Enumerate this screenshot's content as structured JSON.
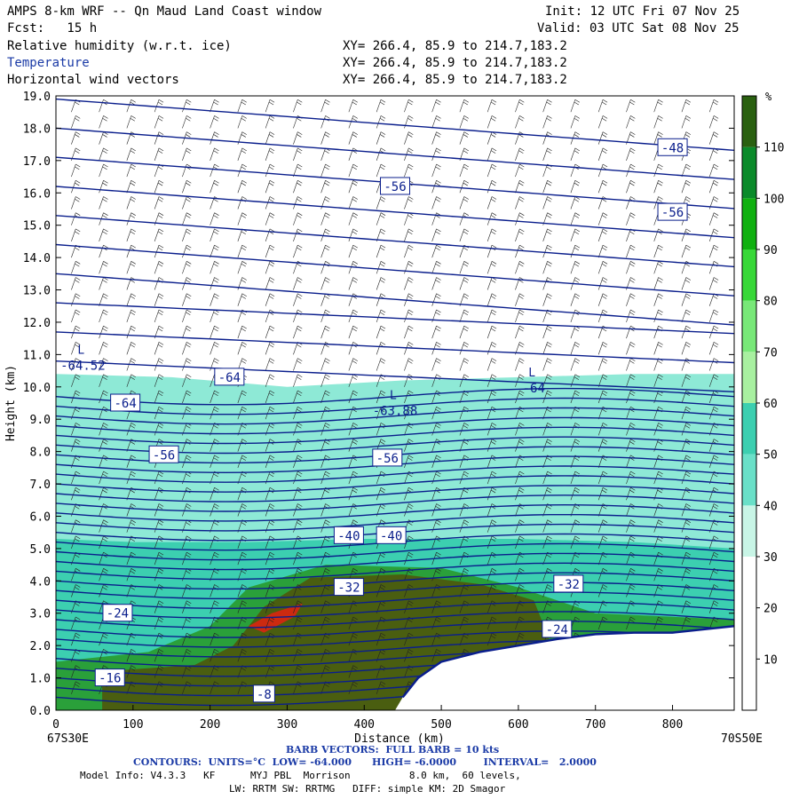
{
  "header": {
    "title": "AMPS 8-km WRF -- Qn Maud Land Coast window",
    "init": "Init: 12 UTC Fri 07 Nov 25",
    "fcst": "Fcst:   15 h",
    "valid": "Valid: 03 UTC Sat 08 Nov 25",
    "fields": [
      {
        "name": "Relative humidity (w.r.t. ice)",
        "xy": "XY= 266.4, 85.9 to 214.7,183.2"
      },
      {
        "name": "Temperature",
        "xy": "XY= 266.4, 85.9 to 214.7,183.2"
      },
      {
        "name": "Horizontal wind vectors",
        "xy": "XY= 266.4, 85.9 to 214.7,183.2"
      }
    ]
  },
  "chart_data": {
    "type": "heatmap",
    "xlabel": "Distance (km)",
    "ylabel": "Height (km)",
    "xlim": [
      0,
      880
    ],
    "ylim": [
      0,
      19
    ],
    "x_ticks": [
      0,
      100,
      200,
      300,
      400,
      500,
      600,
      700,
      800
    ],
    "y_ticks": [
      "0.0",
      "1.0",
      "2.0",
      "3.0",
      "4.0",
      "5.0",
      "6.0",
      "7.0",
      "8.0",
      "9.0",
      "10.0",
      "11.0",
      "12.0",
      "13.0",
      "14.0",
      "15.0",
      "16.0",
      "17.0",
      "18.0",
      "19.0"
    ],
    "left_endpoint": "67S30E",
    "right_endpoint": "70S50E",
    "colorbar": {
      "unit": "%",
      "ticks": [
        10,
        20,
        30,
        40,
        50,
        60,
        70,
        80,
        90,
        100,
        110
      ],
      "colors": [
        "#ffffff",
        "#ffffff",
        "#ffffff",
        "#c8f5e6",
        "#78e4cc",
        "#3ccfb0",
        "#a8f0a0",
        "#78e878",
        "#38d838",
        "#10b010",
        "#0a8a2a",
        "#1a6a10",
        "#4a5a08",
        "#c82810"
      ]
    },
    "terrain": [
      [
        0,
        0
      ],
      [
        400,
        0
      ],
      [
        450,
        0.4
      ],
      [
        470,
        1.0
      ],
      [
        500,
        1.5
      ],
      [
        550,
        1.8
      ],
      [
        600,
        2.0
      ],
      [
        650,
        2.2
      ],
      [
        700,
        2.35
      ],
      [
        750,
        2.4
      ],
      [
        800,
        2.4
      ],
      [
        880,
        2.6
      ]
    ],
    "rh_regions": [
      {
        "level": 40,
        "outline": [
          [
            0,
            0
          ],
          [
            880,
            0
          ],
          [
            880,
            10.4
          ],
          [
            750,
            10.4
          ],
          [
            600,
            10.3
          ],
          [
            450,
            10.2
          ],
          [
            300,
            10.0
          ],
          [
            150,
            10.3
          ],
          [
            0,
            10.4
          ]
        ]
      },
      {
        "level": 60,
        "outline": [
          [
            0,
            0
          ],
          [
            880,
            0
          ],
          [
            880,
            5.0
          ],
          [
            750,
            5.2
          ],
          [
            600,
            5.3
          ],
          [
            400,
            5.3
          ],
          [
            250,
            5.2
          ],
          [
            100,
            5.2
          ],
          [
            0,
            5.3
          ]
        ]
      },
      {
        "level": 90,
        "outline": [
          [
            0,
            0
          ],
          [
            880,
            0
          ],
          [
            880,
            2.8
          ],
          [
            700,
            3.0
          ],
          [
            600,
            3.8
          ],
          [
            500,
            4.4
          ],
          [
            350,
            4.5
          ],
          [
            250,
            3.8
          ],
          [
            200,
            2.6
          ],
          [
            120,
            1.8
          ],
          [
            0,
            1.5
          ]
        ]
      },
      {
        "level": 100,
        "outline": [
          [
            60,
            0
          ],
          [
            460,
            0
          ],
          [
            470,
            1.0
          ],
          [
            550,
            1.8
          ],
          [
            640,
            2.2
          ],
          [
            620,
            3.4
          ],
          [
            550,
            3.9
          ],
          [
            450,
            4.2
          ],
          [
            330,
            4.1
          ],
          [
            270,
            3.2
          ],
          [
            230,
            2.0
          ],
          [
            180,
            1.4
          ],
          [
            60,
            1.2
          ]
        ]
      },
      {
        "level": 110,
        "outline": [
          [
            250,
            2.6
          ],
          [
            280,
            3.0
          ],
          [
            320,
            3.3
          ],
          [
            310,
            2.9
          ],
          [
            270,
            2.4
          ]
        ]
      }
    ],
    "temperature_contours": {
      "unit": "°C",
      "interval": 2,
      "low": -64,
      "high": -6,
      "labels": [
        {
          "text": "-48",
          "x": 800,
          "y": 17.4
        },
        {
          "text": "-56",
          "x": 440,
          "y": 16.2
        },
        {
          "text": "-56",
          "x": 800,
          "y": 15.4
        },
        {
          "text": "-64",
          "x": 225,
          "y": 10.3
        },
        {
          "text": "-64",
          "x": 90,
          "y": 9.5
        },
        {
          "text": "-56",
          "x": 140,
          "y": 7.9
        },
        {
          "text": "-56",
          "x": 430,
          "y": 7.8
        },
        {
          "text": "-40",
          "x": 380,
          "y": 5.4
        },
        {
          "text": "-40",
          "x": 435,
          "y": 5.4
        },
        {
          "text": "-32",
          "x": 380,
          "y": 3.8
        },
        {
          "text": "-32",
          "x": 665,
          "y": 3.9
        },
        {
          "text": "-24",
          "x": 80,
          "y": 3.0
        },
        {
          "text": "-24",
          "x": 650,
          "y": 2.5
        },
        {
          "text": "-16",
          "x": 70,
          "y": 1.0
        },
        {
          "text": "-8",
          "x": 270,
          "y": 0.5
        }
      ],
      "extrema": [
        {
          "text": "-64.52",
          "x": 35,
          "y": 10.7
        },
        {
          "text": "-63.88",
          "x": 440,
          "y": 9.3
        },
        {
          "text": "-64",
          "x": 620,
          "y": 10.0
        }
      ]
    }
  },
  "footer": {
    "barb_note": "BARB VECTORS:  FULL BARB = 10 kts",
    "contours_note": "CONTOURS:  UNITS=°C  LOW= -64.000      HIGH= -6.0000        INTERVAL=   2.0000",
    "model_info": "Model Info: V4.3.3   KF      MYJ PBL  Morrison          8.0 km,  60 levels,",
    "model_info_2": "LW: RRTM SW: RRTMG   DIFF: simple KM: 2D Smagor"
  }
}
